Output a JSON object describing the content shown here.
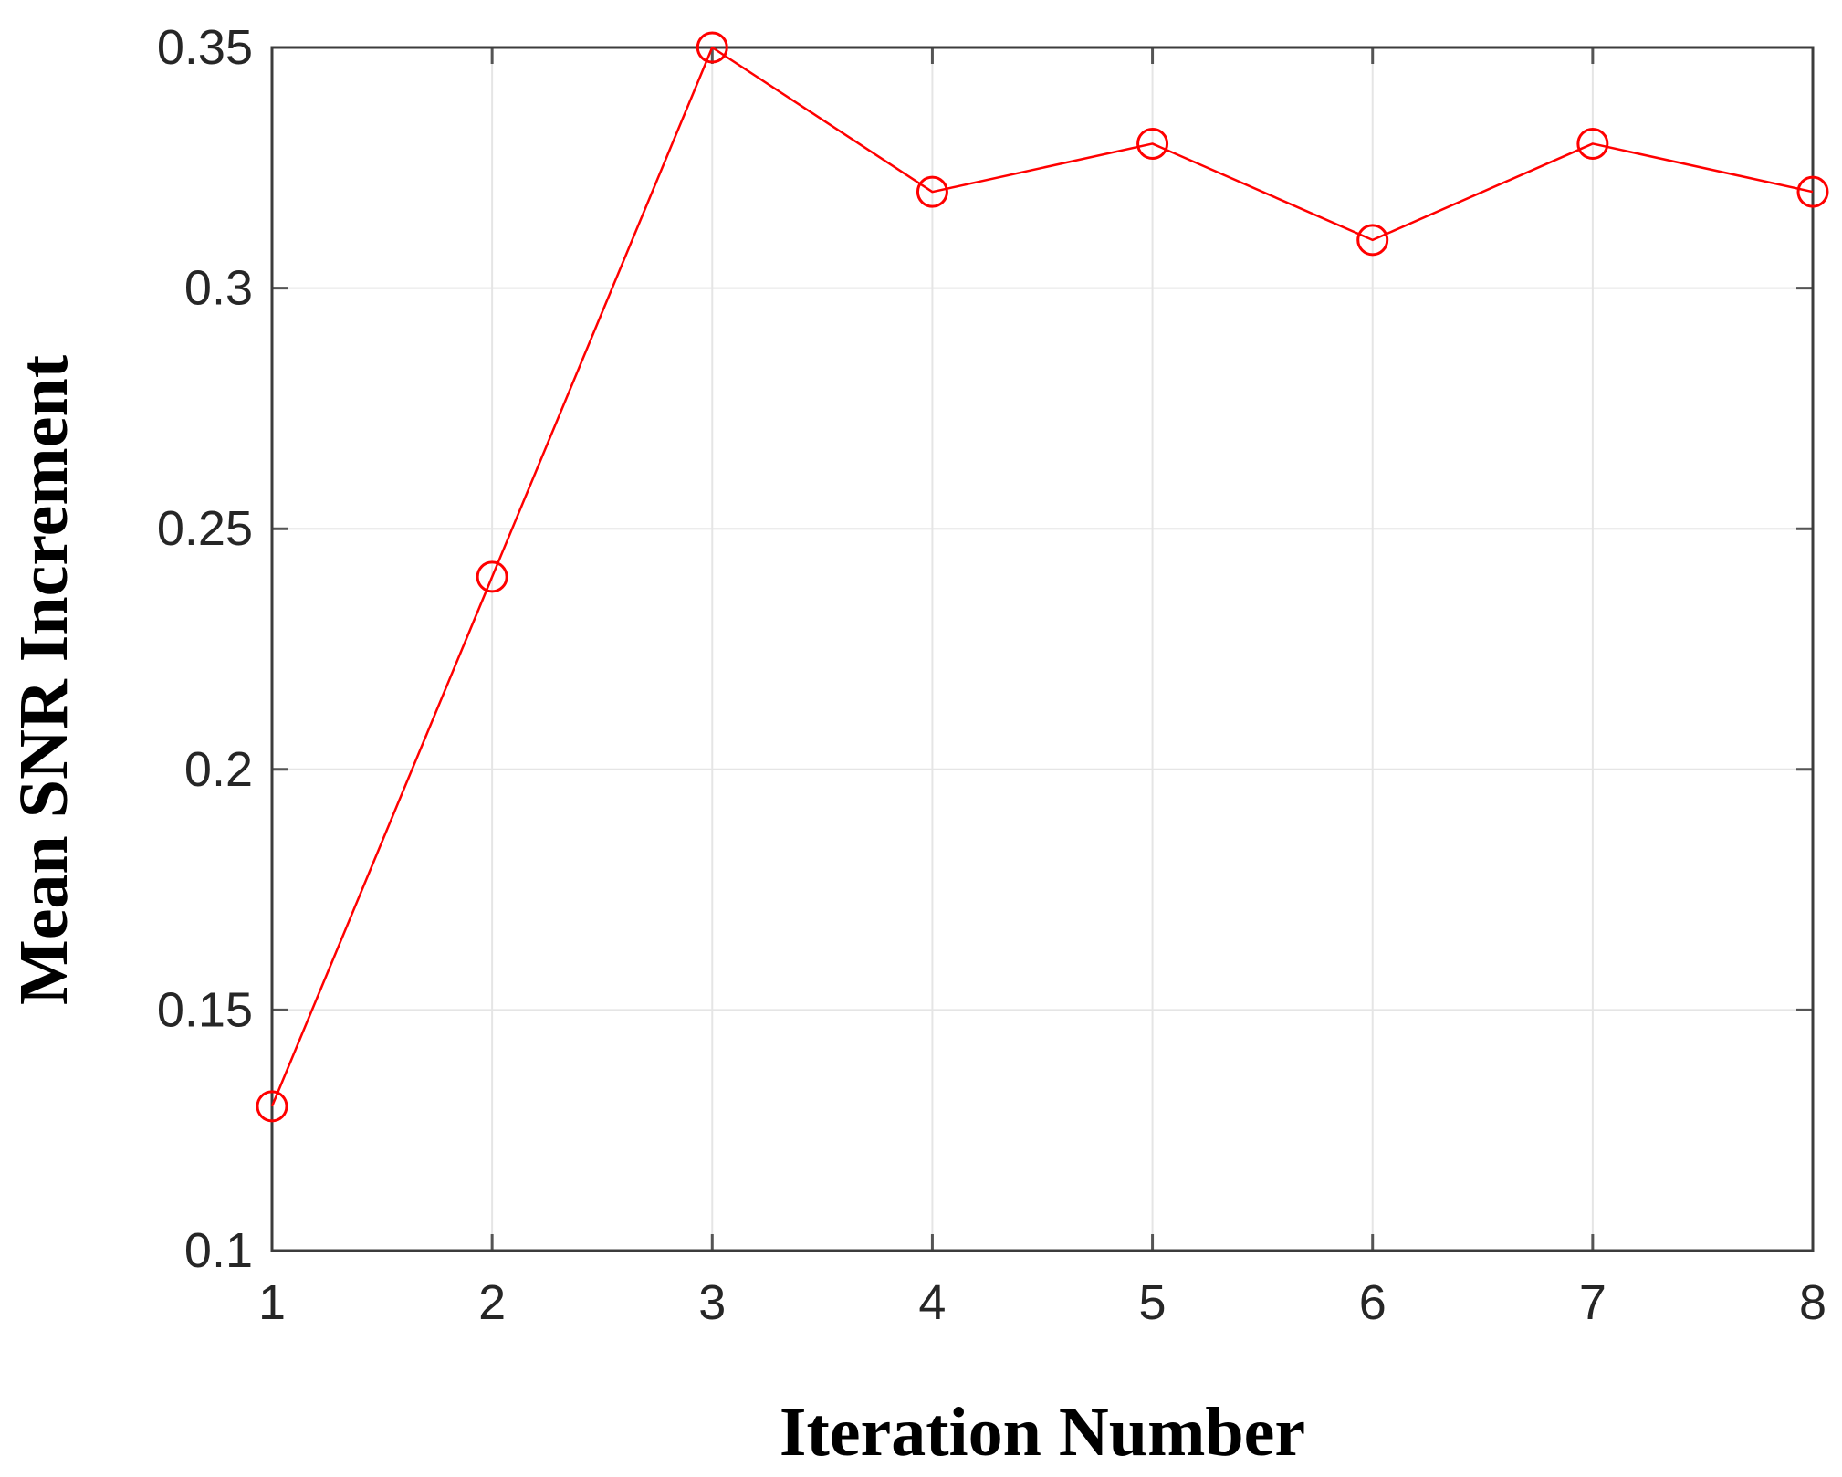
{
  "figure": {
    "background": "#ffffff"
  },
  "chart_data": {
    "type": "line",
    "title": "",
    "xlabel": "Iteration Number",
    "ylabel": "Mean SNR Increment",
    "series": [
      {
        "name": "Mean SNR Increment",
        "x": [
          1,
          2,
          3,
          4,
          5,
          6,
          7,
          8
        ],
        "values": [
          0.13,
          0.24,
          0.35,
          0.32,
          0.33,
          0.31,
          0.33,
          0.32
        ]
      }
    ],
    "xlim": [
      1,
      8
    ],
    "ylim": [
      0.1,
      0.35
    ],
    "x_ticks": [
      1,
      2,
      3,
      4,
      5,
      6,
      7,
      8
    ],
    "x_tick_labels": [
      "1",
      "2",
      "3",
      "4",
      "5",
      "6",
      "7",
      "8"
    ],
    "y_ticks": [
      0.1,
      0.15,
      0.2,
      0.25,
      0.3,
      0.35
    ],
    "y_tick_labels": [
      "0.1",
      "0.15",
      "0.2",
      "0.25",
      "0.3",
      "0.35"
    ],
    "grid": true,
    "legend_position": "none",
    "marker": "open-circle",
    "colors": {
      "line": "#ff0000",
      "axis_border": "#3c3c3c",
      "tick_mark": "#555555",
      "gridline": "#e5e5e5",
      "tick_label": "#262626",
      "axis_title": "#000000"
    }
  }
}
